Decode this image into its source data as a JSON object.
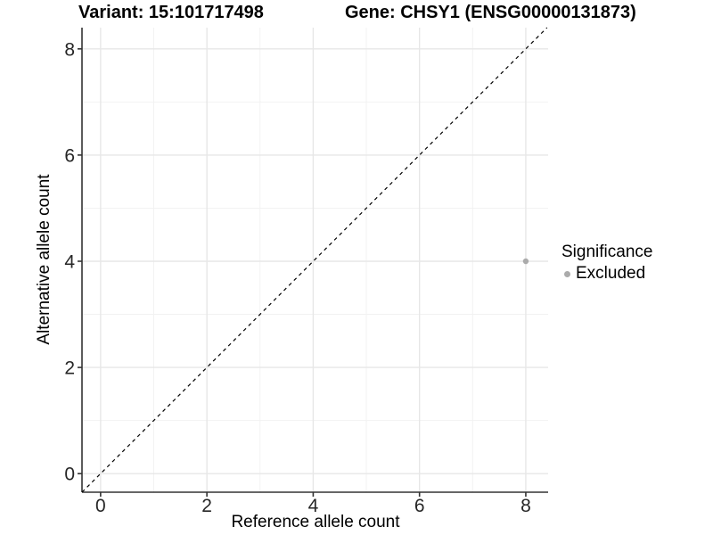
{
  "chart_data": {
    "type": "scatter",
    "title_left": "Variant: 15:101717498",
    "title_right": "Gene: CHSY1 (ENSG00000131873)",
    "xlabel": "Reference allele count",
    "ylabel": "Alternative allele count",
    "xlim": [
      -0.35,
      8.42
    ],
    "ylim": [
      -0.35,
      8.4
    ],
    "x_major_ticks": [
      0,
      2,
      4,
      6,
      8
    ],
    "x_minor_ticks": [
      1,
      3,
      5,
      7
    ],
    "y_major_ticks": [
      0,
      2,
      4,
      6,
      8
    ],
    "y_minor_ticks": [
      1,
      3,
      5,
      7
    ],
    "grid": true,
    "reference_line": {
      "type": "identity",
      "slope": 1,
      "intercept": 0,
      "style": "dashed",
      "color": "#000000"
    },
    "series": [
      {
        "name": "Excluded",
        "color": "#ababab",
        "points": [
          {
            "x": 8,
            "y": 4
          }
        ]
      }
    ],
    "legend": {
      "title": "Significance",
      "position": "right",
      "items": [
        {
          "label": "Excluded",
          "color": "#ababab"
        }
      ]
    }
  },
  "colors": {
    "background": "#ffffff",
    "grid_major": "#e7e7e7",
    "grid_minor": "#f2f2f2",
    "axis": "#333333",
    "tick_text": "#262626",
    "title_text": "#000000"
  }
}
